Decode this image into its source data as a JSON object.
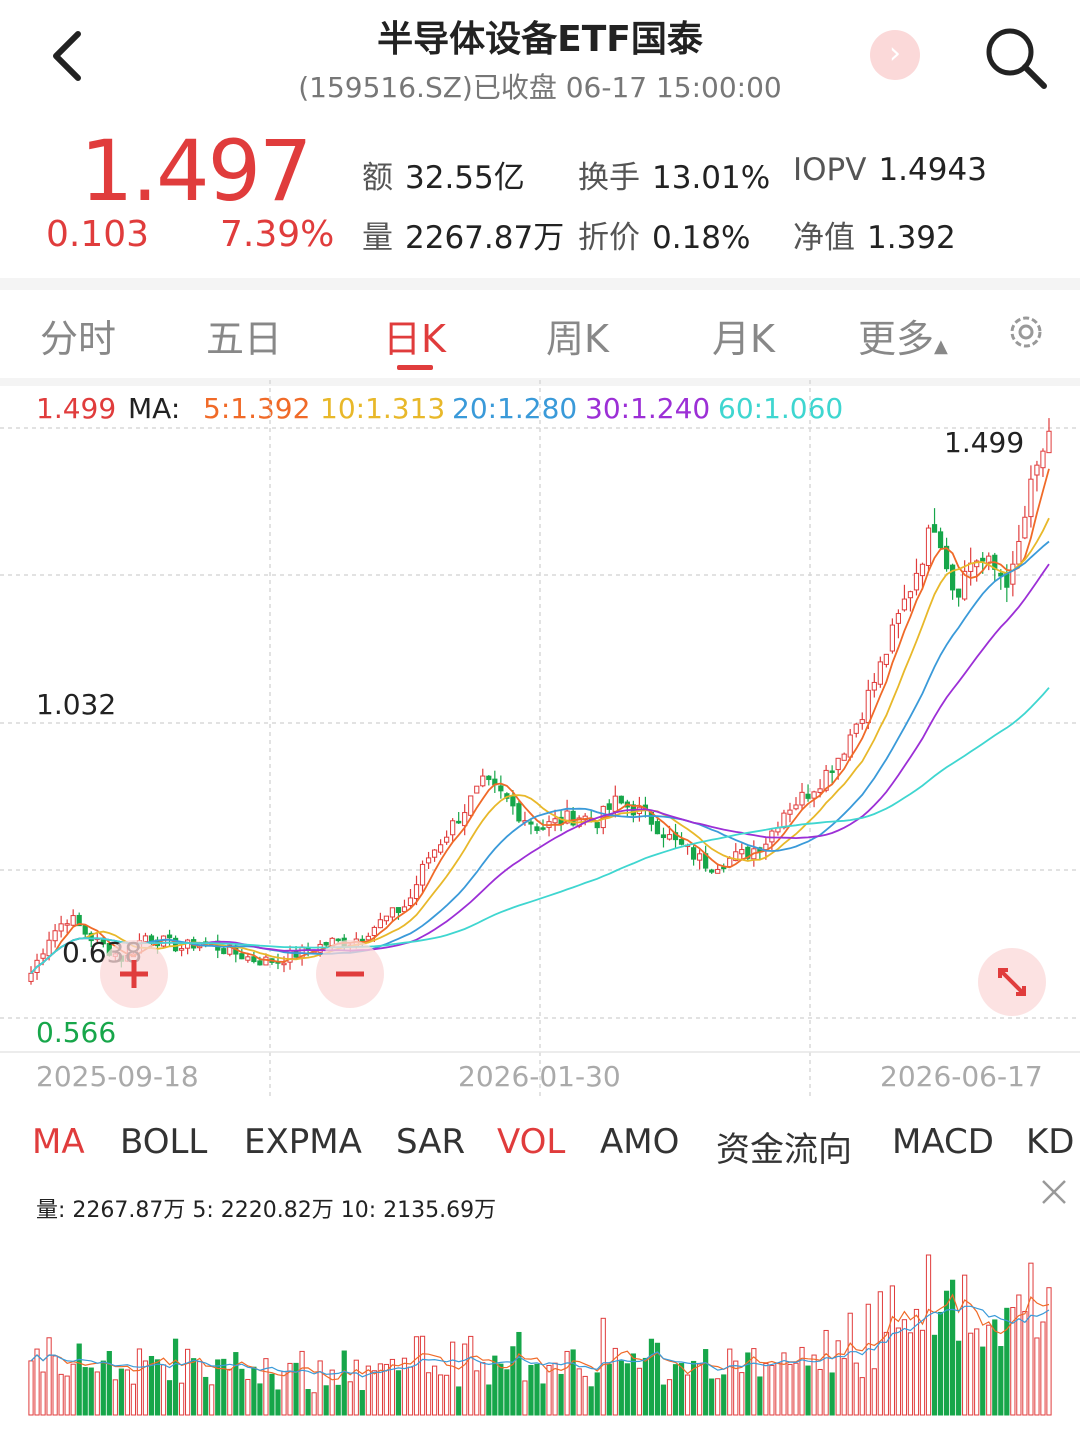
{
  "header": {
    "title": "半导体设备ETF国泰",
    "subtitle": "(159516.SZ)已收盘 06-17 15:00:00",
    "next_glyph": "›"
  },
  "quote": {
    "price": "1.497",
    "change": "0.103",
    "change_pct": "7.39%",
    "stats": [
      {
        "label": "额",
        "value": "32.55亿"
      },
      {
        "label": "换手",
        "value": "13.01%"
      },
      {
        "label": "IOPV",
        "value": "1.4943"
      },
      {
        "label": "量",
        "value": "2267.87万"
      },
      {
        "label": "折价",
        "value": "0.18%"
      },
      {
        "label": "净值",
        "value": "1.392"
      }
    ]
  },
  "tabs": [
    "分时",
    "五日",
    "日K",
    "周K",
    "月K",
    "更多"
  ],
  "active_tab": "日K",
  "ma_legend": {
    "price": "1.499",
    "ma_label": "MA:",
    "items": [
      {
        "text": "5:1.392",
        "color": "#f06a28"
      },
      {
        "text": "10:1.313",
        "color": "#e8b82a"
      },
      {
        "text": "20:1.280",
        "color": "#3a9ad9"
      },
      {
        "text": "30:1.240",
        "color": "#9c2fd6"
      },
      {
        "text": "60:1.060",
        "color": "#3fd6d0"
      }
    ]
  },
  "chart": {
    "high_label": "1.499",
    "mid_label": "1.032",
    "low_label": "0.638",
    "min_label": "0.566",
    "dates": [
      "2025-09-18",
      "2026-01-30",
      "2026-06-17"
    ]
  },
  "colors": {
    "up": "#e03c3c",
    "down": "#17a64a",
    "grid": "#d8d8d8"
  },
  "indicators": [
    "MA",
    "BOLL",
    "EXPMA",
    "SAR",
    "VOL",
    "AMO",
    "资金流向",
    "MACD",
    "KD"
  ],
  "active_indicators": [
    "MA",
    "VOL"
  ],
  "volume_legend": "量: 2267.87万  5: 2220.82万  10: 2135.69万",
  "chart_data": {
    "type": "candlestick",
    "y_range": [
      0.566,
      1.499
    ],
    "x_ticks": [
      "2025-09-18",
      "2026-01-30",
      "2026-06-17"
    ],
    "close_path": [
      0.64,
      0.7,
      0.73,
      0.7,
      0.68,
      0.66,
      0.7,
      0.69,
      0.68,
      0.69,
      0.68,
      0.67,
      0.66,
      0.66,
      0.67,
      0.68,
      0.69,
      0.69,
      0.71,
      0.73,
      0.75,
      0.82,
      0.86,
      0.9,
      0.94,
      0.92,
      0.89,
      0.87,
      0.88,
      0.89,
      0.88,
      0.91,
      0.9,
      0.88,
      0.85,
      0.83,
      0.81,
      0.82,
      0.83,
      0.85,
      0.9,
      0.92,
      0.95,
      0.99,
      1.05,
      1.12,
      1.2,
      1.28,
      1.36,
      1.24,
      1.3,
      1.28,
      1.26,
      1.4,
      1.499
    ]
  }
}
